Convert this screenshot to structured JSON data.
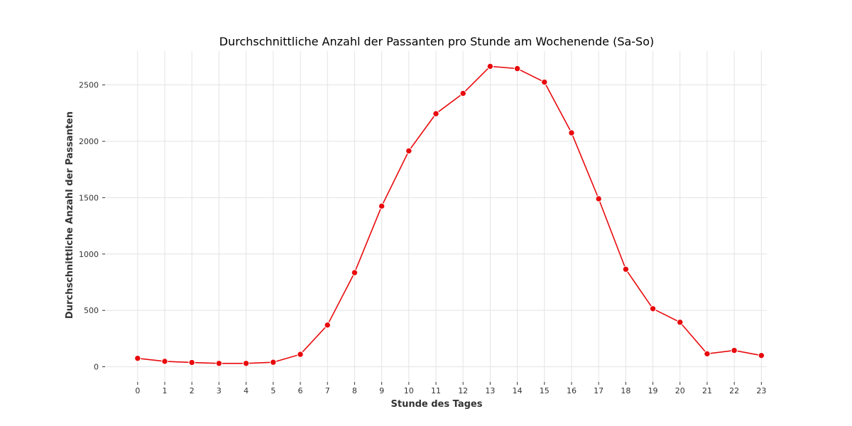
{
  "chart_data": {
    "type": "line",
    "title": "Durchschnittliche Anzahl der Passanten pro Stunde am Wochenende (Sa-So)",
    "xlabel": "Stunde des Tages",
    "ylabel": "Durchschnittliche Anzahl der Passanten",
    "x": [
      0,
      1,
      2,
      3,
      4,
      5,
      6,
      7,
      8,
      9,
      10,
      11,
      12,
      13,
      14,
      15,
      16,
      17,
      18,
      19,
      20,
      21,
      22,
      23
    ],
    "x_tick_labels": [
      "0",
      "1",
      "2",
      "3",
      "4",
      "5",
      "6",
      "7",
      "8",
      "9",
      "10",
      "11",
      "12",
      "13",
      "14",
      "15",
      "16",
      "17",
      "18",
      "19",
      "20",
      "21",
      "22",
      "23"
    ],
    "y": [
      75,
      48,
      38,
      30,
      30,
      40,
      110,
      370,
      835,
      1425,
      1915,
      2245,
      2425,
      2665,
      2645,
      2525,
      2075,
      1490,
      865,
      515,
      395,
      115,
      145,
      100
    ],
    "y_ticks": [
      0,
      500,
      1000,
      1500,
      2000,
      2500
    ],
    "y_tick_labels": [
      "0",
      "500",
      "1000",
      "1500",
      "2000",
      "2500"
    ],
    "xlim": [
      -1.2,
      23.2
    ],
    "ylim": [
      -135,
      2800
    ],
    "grid": true,
    "line_color": "#e8090c",
    "marker_color": "#e8090c",
    "marker_edge_color": "#ffffff"
  }
}
